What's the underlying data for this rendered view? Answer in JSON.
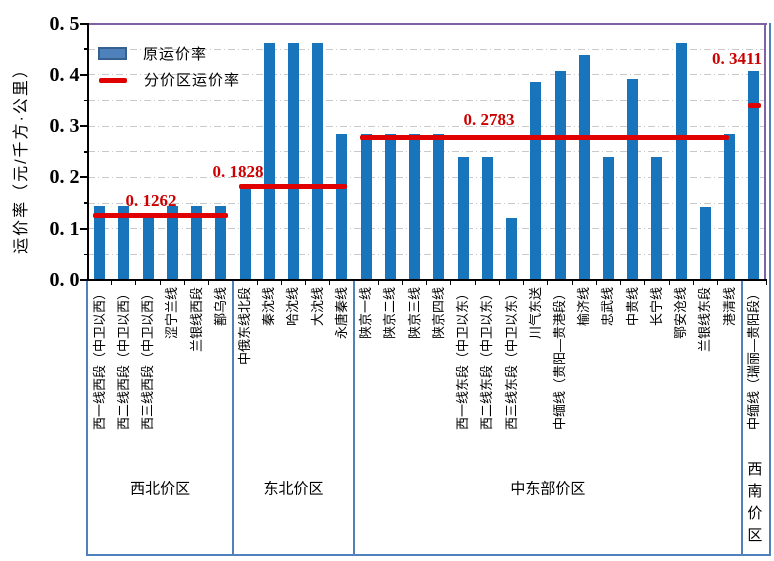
{
  "figure": {
    "y_axis_title": "运价率（元/千方·公里）",
    "y_tick_labels": [
      "0. 0",
      "0. 1",
      "0. 2",
      "0. 3",
      "0. 4",
      "0. 5"
    ],
    "legend": {
      "original_rate_label": "原运价率",
      "zone_rate_label": "分价区运价率"
    }
  },
  "colors": {
    "bar": "#1874bb",
    "legend_bar_fill": "#4f81bd",
    "legend_bar_border": "#36618e",
    "red_line": "#e10000",
    "red_text": "#cc0000",
    "grid": "#c9c9c9",
    "plot_border": "#7e62a1",
    "outer_box": "#4f81bd",
    "axis": "#000000"
  },
  "chart_data": {
    "type": "bar",
    "title": "",
    "xlabel": "",
    "ylabel": "运价率（元/千方·公里）",
    "ylim": [
      0,
      0.5
    ],
    "ytick_step": 0.1,
    "grid": "horizontal dash-dot every 0.05",
    "legend_position": "top-left inside plot",
    "series_info": [
      {
        "name": "原运价率",
        "type": "bar"
      },
      {
        "name": "分价区运价率",
        "type": "line-segments"
      }
    ],
    "zones": [
      {
        "name": "西北价区",
        "zone_rate": 0.1262,
        "zone_rate_label": "0. 1262",
        "categories": [
          "西一线西段（中卫以西）",
          "西二线西段（中卫以西）",
          "西三线西段（中卫以西）",
          "涩宁兰线",
          "兰银线西段",
          "鄯乌线"
        ],
        "values": [
          0.145,
          0.145,
          0.126,
          0.145,
          0.145,
          0.145
        ]
      },
      {
        "name": "东北价区",
        "zone_rate": 0.1828,
        "zone_rate_label": "0. 1828",
        "categories": [
          "中俄东线北段",
          "秦沈线",
          "哈沈线",
          "大沈线",
          "永唐秦线"
        ],
        "values": [
          0.183,
          0.462,
          0.462,
          0.462,
          0.284
        ]
      },
      {
        "name": "中东部价区",
        "zone_rate": 0.2783,
        "zone_rate_label": "0. 2783",
        "categories": [
          "陕京一线",
          "陕京二线",
          "陕京三线",
          "陕京四线",
          "西一线东段（中卫以东）",
          "西二线东段（中卫以东）",
          "西三线东段（中卫以东）",
          "川气东送",
          "中缅线（贵阳—贵港段）",
          "榆济线",
          "忠武线",
          "中贵线",
          "长宁线",
          "鄂安沧线",
          "兰银线东段",
          "港清线"
        ],
        "values": [
          0.284,
          0.284,
          0.284,
          0.284,
          0.239,
          0.239,
          0.121,
          0.385,
          0.407,
          0.439,
          0.239,
          0.392,
          0.239,
          0.462,
          0.142,
          0.284
        ]
      },
      {
        "name": "西南价区",
        "zone_rate": 0.3411,
        "zone_rate_label": "0. 3411",
        "categories": [
          "中缅线（瑞丽—贵阳段）"
        ],
        "values": [
          0.407
        ]
      }
    ]
  }
}
